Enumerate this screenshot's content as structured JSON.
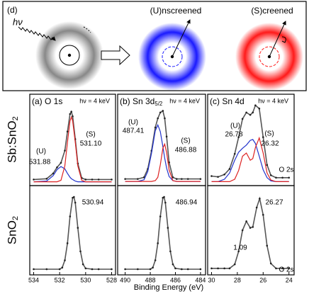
{
  "diagram": {
    "label": "(d)",
    "photon": "hν",
    "unscreened": "(U)nscreened",
    "screened": "(S)creened"
  },
  "row_labels": [
    {
      "text": "Sb:SnO",
      "sub": "2"
    },
    {
      "text": "SnO",
      "sub": "2"
    }
  ],
  "x_label": "Binding Energy (eV)",
  "chart_data": [
    {
      "type": "line",
      "title": "(a) O 1s",
      "note": "hν = 4 keV",
      "x": [
        534,
        533,
        532.5,
        532.2,
        531.9,
        531.6,
        531.4,
        531.2,
        531.1,
        531.0,
        530.8,
        530.6,
        530.3,
        530,
        529.5,
        529,
        528
      ],
      "series": [
        {
          "color": "#555555",
          "markers": true,
          "values": [
            0.03,
            0.04,
            0.11,
            0.19,
            0.25,
            0.41,
            0.66,
            0.89,
            0.92,
            0.86,
            0.56,
            0.24,
            0.05,
            0.03,
            0.03,
            0.03,
            0.03
          ]
        },
        {
          "color": "#2233cc",
          "values": [
            0,
            0.01,
            0.08,
            0.16,
            0.2,
            0.17,
            0.11,
            0.06,
            0.04,
            0.03,
            0.01,
            0,
            0,
            0,
            0,
            0,
            0
          ]
        },
        {
          "color": "#dd2222",
          "values": [
            0,
            0,
            0,
            0,
            0.02,
            0.21,
            0.52,
            0.8,
            0.85,
            0.8,
            0.52,
            0.21,
            0.02,
            0,
            0,
            0,
            0
          ]
        }
      ],
      "xlim": [
        534.3,
        527.7
      ],
      "ylim": [
        -0.05,
        1.15
      ],
      "annotations": [
        "(S)",
        "531.10",
        "(U)",
        "531.88"
      ]
    },
    {
      "type": "line",
      "x": [
        534,
        533,
        532,
        531.8,
        531.6,
        531.4,
        531.2,
        531.0,
        530.9,
        530.8,
        530.6,
        530.4,
        530.2,
        530,
        529.5,
        529,
        528
      ],
      "series": [
        {
          "color": "#555555",
          "markers": true,
          "values": [
            0.02,
            0.02,
            0.02,
            0.04,
            0.13,
            0.34,
            0.67,
            0.9,
            0.91,
            0.84,
            0.53,
            0.24,
            0.08,
            0.03,
            0.02,
            0.02,
            0.02
          ]
        }
      ],
      "xlim": [
        534.3,
        527.7
      ],
      "ylim": [
        -0.05,
        1.05
      ],
      "xticks": [
        534,
        532,
        530,
        528
      ],
      "annotations": [
        "530.94"
      ]
    },
    {
      "type": "line",
      "title": "(b) Sn 3d",
      "title_sub": "5/2",
      "note": "hν = 4 keV",
      "x": [
        490,
        489,
        488.5,
        488.2,
        487.9,
        487.6,
        487.4,
        487.2,
        487.0,
        486.85,
        486.7,
        486.5,
        486.2,
        485.9,
        485.5,
        485,
        484
      ],
      "series": [
        {
          "color": "#555555",
          "markers": true,
          "values": [
            0.03,
            0.03,
            0.05,
            0.15,
            0.37,
            0.65,
            0.76,
            0.83,
            0.85,
            0.76,
            0.54,
            0.23,
            0.05,
            0.03,
            0.03,
            0.03,
            0.03
          ]
        },
        {
          "color": "#2233cc",
          "values": [
            0,
            0,
            0.02,
            0.12,
            0.34,
            0.61,
            0.68,
            0.6,
            0.42,
            0.28,
            0.16,
            0.06,
            0.01,
            0,
            0,
            0,
            0
          ]
        },
        {
          "color": "#dd2222",
          "values": [
            0,
            0,
            0,
            0,
            0,
            0.01,
            0.05,
            0.2,
            0.4,
            0.45,
            0.35,
            0.14,
            0.01,
            0,
            0,
            0,
            0
          ]
        }
      ],
      "xlim": [
        490.6,
        483.6
      ],
      "ylim": [
        -0.05,
        1.05
      ],
      "annotations": [
        "(U)",
        "487.41",
        "(S)",
        "486.88"
      ]
    },
    {
      "type": "line",
      "x": [
        490,
        489,
        488,
        487.8,
        487.6,
        487.4,
        487.2,
        487.0,
        486.9,
        486.8,
        486.6,
        486.4,
        486.2,
        486,
        485.5,
        485,
        484
      ],
      "series": [
        {
          "color": "#555555",
          "markers": true,
          "values": [
            0.02,
            0.02,
            0.02,
            0.04,
            0.13,
            0.34,
            0.67,
            0.9,
            0.91,
            0.84,
            0.53,
            0.24,
            0.08,
            0.03,
            0.02,
            0.02,
            0.02
          ]
        }
      ],
      "xlim": [
        490.6,
        483.6
      ],
      "ylim": [
        -0.05,
        1.05
      ],
      "xticks": [
        490,
        488,
        486,
        484
      ],
      "annotations": [
        "486.94"
      ]
    },
    {
      "type": "line",
      "title": "(c) Sn 4d",
      "note": "hν = 4 keV",
      "x": [
        30,
        29.5,
        29,
        28.6,
        28.2,
        27.9,
        27.6,
        27.3,
        27.0,
        26.8,
        26.6,
        26.3,
        26.0,
        25.7,
        25.4,
        25,
        24.5,
        24
      ],
      "series": [
        {
          "color": "#555555",
          "markers": true,
          "values": [
            0.07,
            0.06,
            0.09,
            0.16,
            0.35,
            0.56,
            0.79,
            0.87,
            0.84,
            0.87,
            0.96,
            0.92,
            0.56,
            0.21,
            0.08,
            0.05,
            0.05,
            0.05
          ]
        },
        {
          "color": "#2233cc",
          "values": [
            0,
            0,
            0.03,
            0.11,
            0.27,
            0.37,
            0.42,
            0.46,
            0.52,
            0.53,
            0.48,
            0.32,
            0.15,
            0.05,
            0.01,
            0,
            0,
            0
          ]
        },
        {
          "color": "#dd2222",
          "values": [
            0,
            0,
            0,
            0,
            0.03,
            0.14,
            0.32,
            0.36,
            0.27,
            0.29,
            0.43,
            0.55,
            0.36,
            0.11,
            0.02,
            0,
            0,
            0
          ]
        }
      ],
      "xlim": [
        30.3,
        23.6
      ],
      "ylim": [
        -0.05,
        1.1
      ],
      "annotations": [
        "(U)",
        "26.78",
        "(S)",
        "26.32",
        "O 2s"
      ]
    },
    {
      "type": "line",
      "x": [
        30,
        29.5,
        29,
        28.6,
        28.2,
        27.9,
        27.6,
        27.3,
        27.0,
        26.8,
        26.5,
        26.27,
        26.0,
        25.7,
        25.4,
        25,
        24.5,
        24
      ],
      "series": [
        {
          "color": "#555555",
          "markers": true,
          "values": [
            0.03,
            0.03,
            0.03,
            0.03,
            0.08,
            0.24,
            0.5,
            0.61,
            0.53,
            0.54,
            0.78,
            0.89,
            0.69,
            0.31,
            0.09,
            0.03,
            0.03,
            0.03
          ]
        }
      ],
      "xlim": [
        30.3,
        23.6
      ],
      "ylim": [
        -0.05,
        1.05
      ],
      "xticks": [
        30,
        28,
        26,
        24
      ],
      "annotations": [
        "26.27",
        "1.09",
        "O 2s"
      ]
    }
  ]
}
